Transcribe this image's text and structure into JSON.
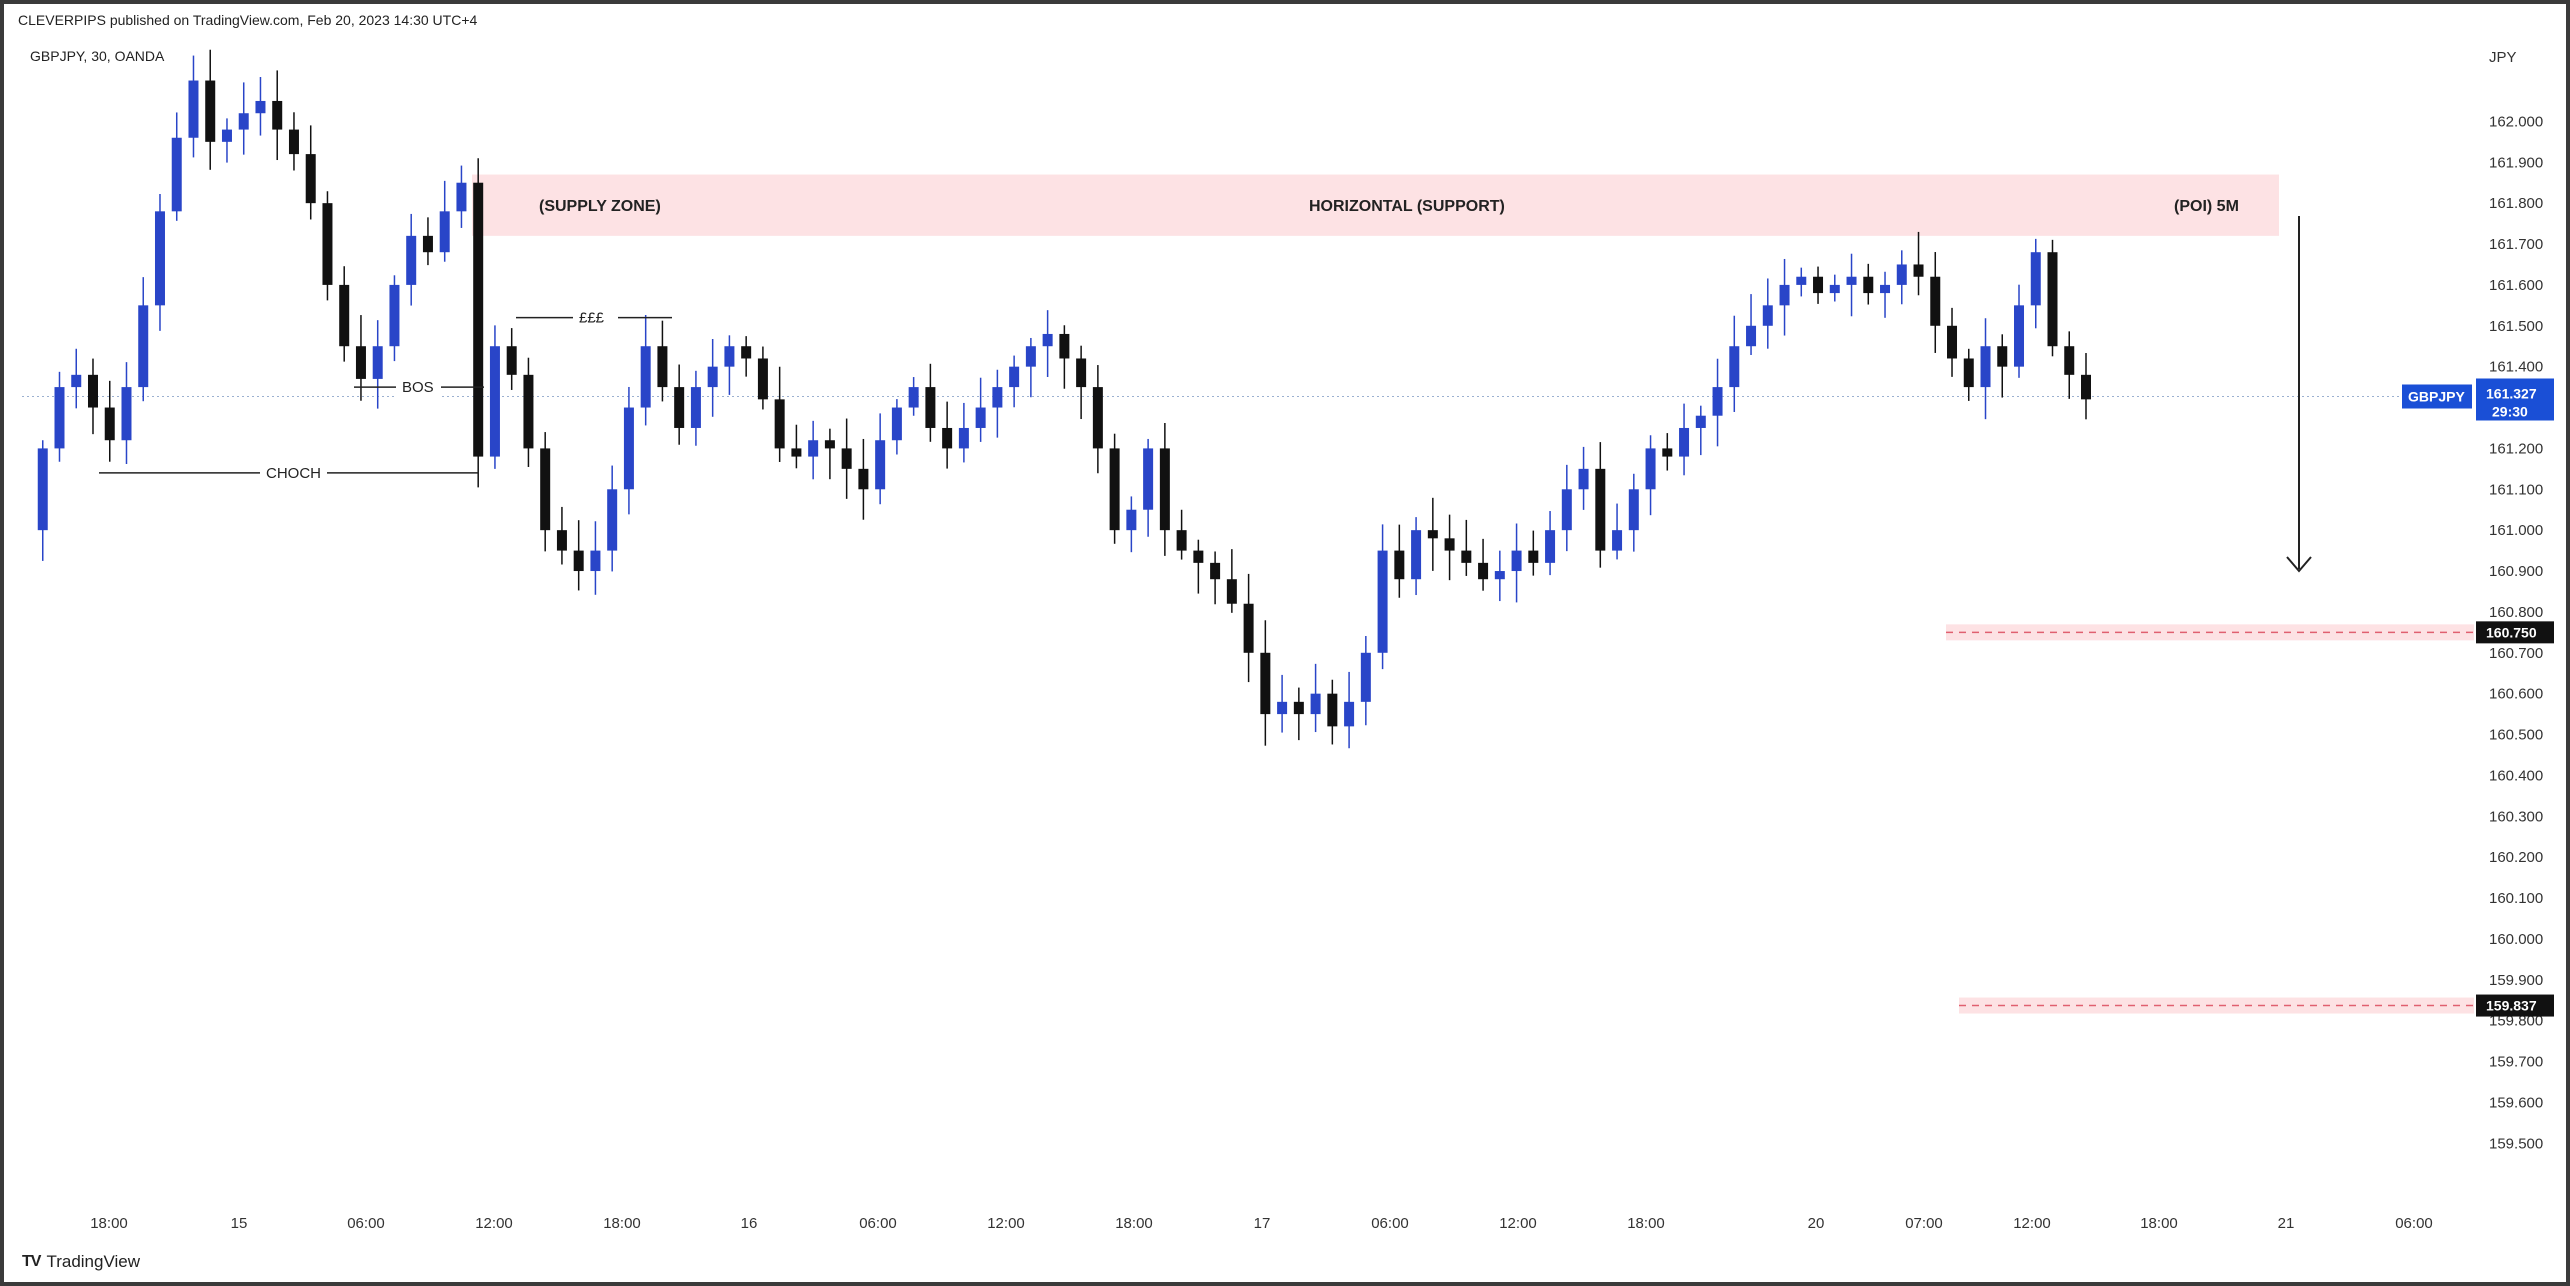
{
  "header": {
    "text": "CLEVERPIPS published on TradingView.com, Feb 20, 2023 14:30 UTC+4"
  },
  "symbol_info": "GBPJPY, 30, OANDA",
  "footer": {
    "brand": "TradingView",
    "logo_glyph": "TV"
  },
  "colors": {
    "up": "#2945c8",
    "down": "#111111",
    "zone": "#fde2e4",
    "dashed": "#e06070",
    "current_tag": "#1a4fd6",
    "level_tag": "#111111",
    "grid_dot": "#9bb0d0"
  },
  "chart_data": {
    "type": "candlestick",
    "currency": "JPY",
    "ylim": [
      159.42,
      162.16
    ],
    "y_ticks": [
      162.0,
      161.9,
      161.8,
      161.7,
      161.6,
      161.5,
      161.4,
      161.2,
      161.1,
      161.0,
      160.9,
      160.8,
      160.7,
      160.6,
      160.5,
      160.4,
      160.3,
      160.2,
      160.1,
      160.0,
      159.9,
      159.8,
      159.7,
      159.6,
      159.5
    ],
    "x_ticks": [
      "18:00",
      "15",
      "06:00",
      "12:00",
      "18:00",
      "16",
      "06:00",
      "12:00",
      "18:00",
      "17",
      "06:00",
      "12:00",
      "18:00",
      "20",
      "07:00",
      "12:00",
      "18:00",
      "21",
      "06:00"
    ],
    "current_price": {
      "symbol": "GBPJPY",
      "price": "161.327",
      "countdown": "29:30"
    },
    "levels": [
      {
        "label": "160.750",
        "value": 160.75
      },
      {
        "label": "159.837",
        "value": 159.837
      }
    ],
    "zone": {
      "from": 161.72,
      "to": 161.87,
      "labels": [
        "(SUPPLY ZONE)",
        "HORIZONTAL (SUPPORT)",
        "(POI) 5M"
      ]
    },
    "annotations": [
      {
        "label": "BOS",
        "value": 161.35
      },
      {
        "label": "CHOCH",
        "value": 161.14
      },
      {
        "label": "£££",
        "value": 161.52
      }
    ],
    "close_path": [
      161.0,
      161.2,
      161.35,
      161.38,
      161.3,
      161.22,
      161.35,
      161.55,
      161.78,
      161.96,
      162.1,
      161.95,
      161.98,
      162.02,
      162.05,
      161.98,
      161.92,
      161.8,
      161.6,
      161.45,
      161.37,
      161.45,
      161.6,
      161.72,
      161.68,
      161.78,
      161.85,
      161.18,
      161.45,
      161.38,
      161.2,
      161.0,
      160.95,
      160.9,
      160.95,
      161.1,
      161.3,
      161.45,
      161.35,
      161.25,
      161.35,
      161.4,
      161.45,
      161.42,
      161.32,
      161.2,
      161.18,
      161.22,
      161.2,
      161.15,
      161.1,
      161.22,
      161.3,
      161.35,
      161.25,
      161.2,
      161.25,
      161.3,
      161.35,
      161.4,
      161.45,
      161.48,
      161.42,
      161.35,
      161.2,
      161.0,
      161.05,
      161.2,
      161.0,
      160.95,
      160.92,
      160.88,
      160.82,
      160.7,
      160.55,
      160.58,
      160.55,
      160.6,
      160.52,
      160.58,
      160.7,
      160.95,
      160.88,
      161.0,
      160.98,
      160.95,
      160.92,
      160.88,
      160.9,
      160.95,
      160.92,
      161.0,
      161.1,
      161.15,
      160.95,
      161.0,
      161.1,
      161.2,
      161.18,
      161.25,
      161.28,
      161.35,
      161.45,
      161.5,
      161.55,
      161.6,
      161.62,
      161.58,
      161.6,
      161.62,
      161.58,
      161.6,
      161.65,
      161.62,
      161.5,
      161.42,
      161.35,
      161.45,
      161.4,
      161.55,
      161.68,
      161.45,
      161.38,
      161.32
    ]
  }
}
